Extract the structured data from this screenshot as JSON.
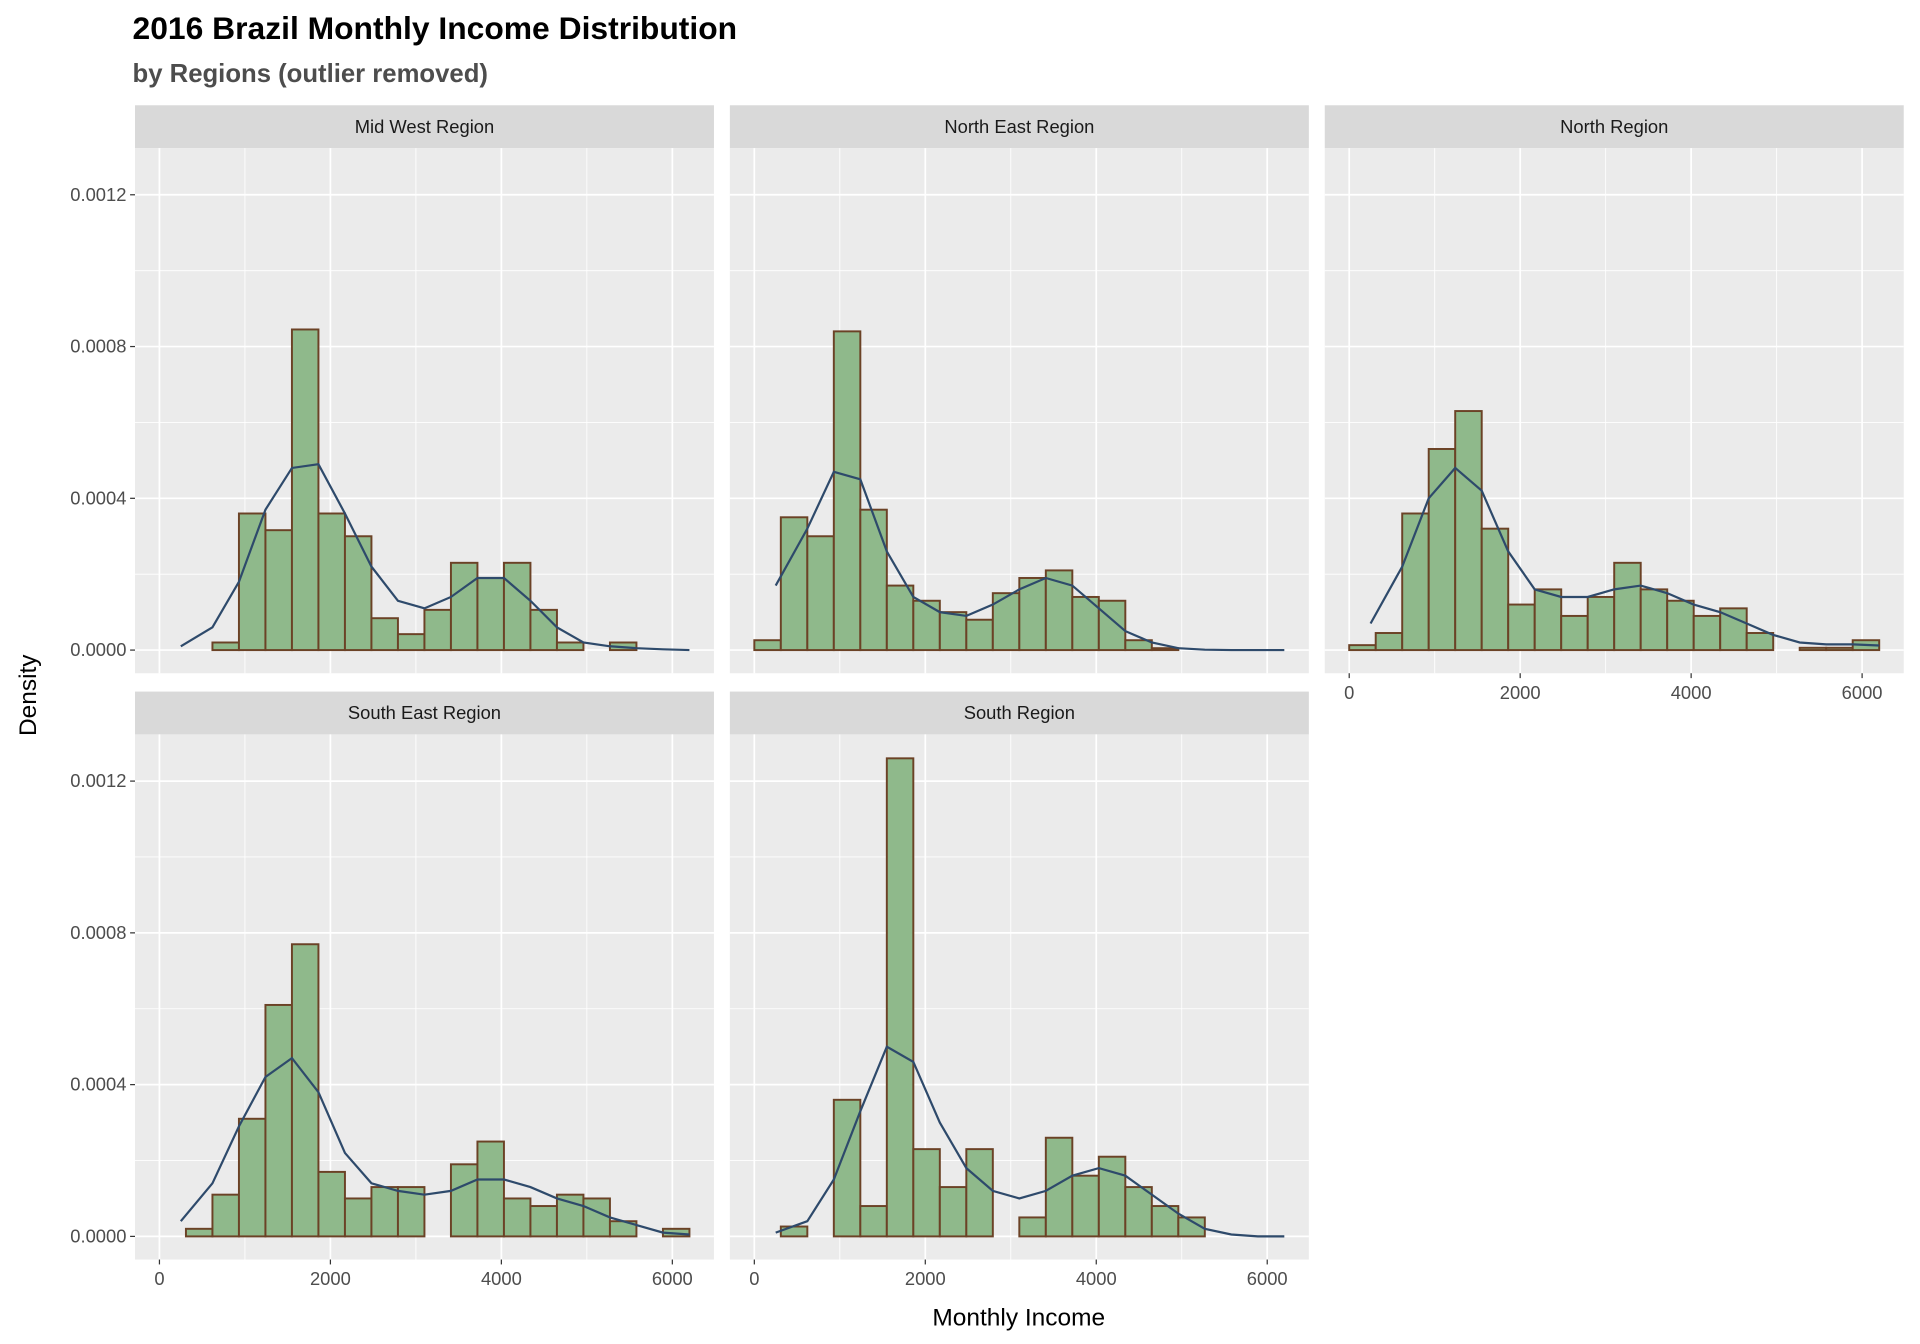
{
  "chart_data": {
    "type": "histogram",
    "title": "2016 Brazil Monthly Income Distribution",
    "subtitle": "by Regions (outlier removed)",
    "x_label": "Monthly Income",
    "y_label": "Density",
    "bar_color": "#8fb98b",
    "bar_edge_color": "#6b4226",
    "density_color": "#2e4a6b",
    "grid": true,
    "bins": [
      0,
      310,
      620,
      930,
      1240,
      1550,
      1860,
      2170,
      2480,
      2790,
      3100,
      3410,
      3720,
      4030,
      4340,
      4650,
      4960,
      5270,
      5580,
      5890,
      6200
    ],
    "xlim": [
      -286,
      6487
    ],
    "ylim": [
      -6.1e-05,
      0.001323
    ],
    "xticks": [
      0,
      2000,
      4000,
      6000
    ],
    "yticks": [
      {
        "value": 0,
        "label": "0.0000"
      },
      {
        "value": 0.0004,
        "label": "0.0004"
      },
      {
        "value": 0.0008,
        "label": "0.0008"
      },
      {
        "value": 0.0012,
        "label": "0.0012"
      }
    ],
    "facets": [
      {
        "name": "Mid West Region",
        "values": [
          0,
          0,
          2e-05,
          0.00036,
          0.000316,
          0.000845,
          0.00036,
          0.0003,
          8.4e-05,
          4.2e-05,
          0.000106,
          0.00023,
          0.00019,
          0.00023,
          0.000106,
          2e-05,
          0,
          2e-05,
          0,
          0
        ],
        "density": {
          "x": [
            250,
            620,
            930,
            1240,
            1550,
            1860,
            2170,
            2480,
            2790,
            3100,
            3410,
            3720,
            4030,
            4340,
            4650,
            4960,
            5270,
            5580,
            5890,
            6200
          ],
          "y": [
            1e-05,
            6e-05,
            0.00018,
            0.00037,
            0.00048,
            0.00049,
            0.00036,
            0.00022,
            0.00013,
            0.00011,
            0.00014,
            0.00019,
            0.00019,
            0.00013,
            6e-05,
            2e-05,
            1e-05,
            5e-06,
            2e-06,
            0
          ]
        }
      },
      {
        "name": "North East Region",
        "values": [
          2.6e-05,
          0.00035,
          0.0003,
          0.00084,
          0.00037,
          0.00017,
          0.00013,
          0.0001,
          8e-05,
          0.00015,
          0.00019,
          0.00021,
          0.00014,
          0.00013,
          2.6e-05,
          5e-06,
          0,
          0,
          0,
          0
        ],
        "density": {
          "x": [
            250,
            620,
            930,
            1240,
            1550,
            1860,
            2170,
            2480,
            2790,
            3100,
            3410,
            3720,
            4030,
            4340,
            4650,
            4960,
            5270,
            5580,
            5890,
            6200
          ],
          "y": [
            0.00017,
            0.00032,
            0.00047,
            0.00045,
            0.00026,
            0.00014,
            0.0001,
            9e-05,
            0.00012,
            0.00016,
            0.00019,
            0.00017,
            0.00011,
            5e-05,
            2e-05,
            5e-06,
            1e-06,
            0,
            0,
            0
          ]
        }
      },
      {
        "name": "North Region",
        "values": [
          1.3e-05,
          4.5e-05,
          0.00036,
          0.00053,
          0.00063,
          0.00032,
          0.00012,
          0.00016,
          9e-05,
          0.00014,
          0.00023,
          0.00016,
          0.00013,
          9e-05,
          0.00011,
          4.5e-05,
          0,
          6e-06,
          6e-06,
          2.6e-05
        ],
        "density": {
          "x": [
            250,
            620,
            930,
            1240,
            1550,
            1860,
            2170,
            2480,
            2790,
            3100,
            3410,
            3720,
            4030,
            4340,
            4650,
            4960,
            5270,
            5580,
            5890,
            6200
          ],
          "y": [
            7e-05,
            0.00022,
            0.0004,
            0.00048,
            0.00042,
            0.00026,
            0.00016,
            0.00014,
            0.00014,
            0.00016,
            0.00017,
            0.00015,
            0.00012,
            0.0001,
            7e-05,
            4e-05,
            2e-05,
            1.5e-05,
            1.5e-05,
            1.2e-05
          ]
        }
      },
      {
        "name": "South East Region",
        "values": [
          0,
          2e-05,
          0.00011,
          0.00031,
          0.00061,
          0.00077,
          0.00017,
          0.0001,
          0.00013,
          0.00013,
          0,
          0.00019,
          0.00025,
          0.0001,
          8e-05,
          0.00011,
          0.0001,
          4e-05,
          0,
          2e-05
        ],
        "density": {
          "x": [
            250,
            620,
            930,
            1240,
            1550,
            1860,
            2170,
            2480,
            2790,
            3100,
            3410,
            3720,
            4030,
            4340,
            4650,
            4960,
            5270,
            5580,
            5890,
            6200
          ],
          "y": [
            4e-05,
            0.00014,
            0.00029,
            0.00042,
            0.00047,
            0.00038,
            0.00022,
            0.00014,
            0.00012,
            0.00011,
            0.00012,
            0.00015,
            0.00015,
            0.00013,
            0.0001,
            8e-05,
            5e-05,
            3e-05,
            1e-05,
            5e-06
          ]
        }
      },
      {
        "name": "South Region",
        "values": [
          0,
          2.6e-05,
          0,
          0.00036,
          8e-05,
          0.00126,
          0.00023,
          0.00013,
          0.00023,
          0,
          5e-05,
          0.00026,
          0.00016,
          0.00021,
          0.00013,
          8e-05,
          5e-05,
          0,
          0,
          0
        ],
        "density": {
          "x": [
            250,
            620,
            930,
            1240,
            1550,
            1860,
            2170,
            2480,
            2790,
            3100,
            3410,
            3720,
            4030,
            4340,
            4650,
            4960,
            5270,
            5580,
            5890,
            6200
          ],
          "y": [
            1e-05,
            4e-05,
            0.00015,
            0.00033,
            0.0005,
            0.00046,
            0.0003,
            0.00018,
            0.00012,
            0.0001,
            0.00012,
            0.00016,
            0.00018,
            0.00016,
            0.00011,
            6e-05,
            2e-05,
            5e-06,
            0,
            0
          ]
        }
      }
    ]
  }
}
